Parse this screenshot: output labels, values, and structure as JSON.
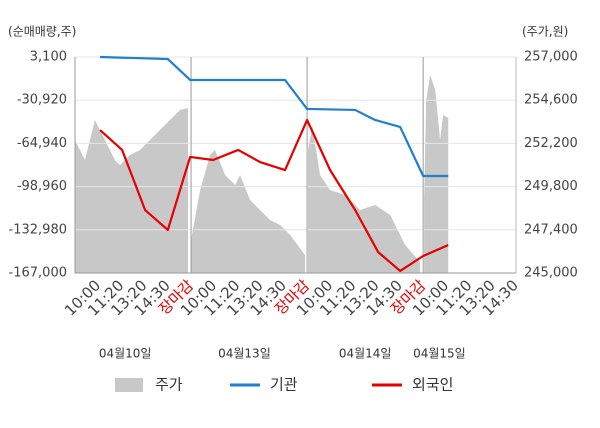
{
  "chart_data": {
    "type": "combo",
    "y_label": "(순매매량,주)",
    "y2_label": "(주가,원)",
    "xlim": [
      0,
      19
    ],
    "ylim": [
      -167000,
      3100
    ],
    "y2lim": [
      245000,
      257000
    ],
    "yticks": [
      {
        "value": 3100,
        "label": "3,100"
      },
      {
        "value": -30920,
        "label": "-30,920"
      },
      {
        "value": -64940,
        "label": "-64,940"
      },
      {
        "value": -98960,
        "label": "-98,960"
      },
      {
        "value": -132980,
        "label": "-132,980"
      },
      {
        "value": -167000,
        "label": "-167,000"
      }
    ],
    "y2ticks": [
      {
        "value": 257000,
        "label": "257,000"
      },
      {
        "value": 254600,
        "label": "254,600"
      },
      {
        "value": 252200,
        "label": "252,200"
      },
      {
        "value": 249800,
        "label": "249,800"
      },
      {
        "value": 247400,
        "label": "247,400"
      },
      {
        "value": 245000,
        "label": "245,000"
      }
    ],
    "xticks": [
      {
        "value": 1,
        "label": "10:00"
      },
      {
        "value": 2,
        "label": "11:20"
      },
      {
        "value": 3,
        "label": "13:20"
      },
      {
        "value": 4,
        "label": "14:30"
      },
      {
        "value": 5,
        "label": "장마감",
        "color": "#e60000"
      },
      {
        "value": 6,
        "label": "10:00"
      },
      {
        "value": 7,
        "label": "11:20"
      },
      {
        "value": 8,
        "label": "13:20"
      },
      {
        "value": 9,
        "label": "14:30"
      },
      {
        "value": 10,
        "label": "장마감",
        "color": "#e60000"
      },
      {
        "value": 11,
        "label": "10:00"
      },
      {
        "value": 12,
        "label": "11:20"
      },
      {
        "value": 13,
        "label": "13:20"
      },
      {
        "value": 14,
        "label": "14:30"
      },
      {
        "value": 15,
        "label": "장마감",
        "color": "#e60000"
      },
      {
        "value": 16,
        "label": "10:00"
      },
      {
        "value": 17,
        "label": "11:20"
      },
      {
        "value": 18,
        "label": "13:20"
      },
      {
        "value": 19,
        "label": "14:30"
      }
    ],
    "day_labels": [
      {
        "value": 2.16,
        "label": "04월10일"
      },
      {
        "value": 7.3,
        "label": "04월13일"
      },
      {
        "value": 12.5,
        "label": "04월14일"
      },
      {
        "value": 15.7,
        "label": "04월15일"
      }
    ],
    "xgrid": [
      5,
      10,
      15
    ],
    "grid": true,
    "legend": "bottom",
    "series": [
      {
        "name": "주가",
        "type": "area",
        "axis": "y2",
        "color": "#c8c8c8",
        "x": [
          0,
          0.43,
          0.86,
          1.29,
          1.72,
          1.94,
          2.37,
          2.8,
          3.23,
          3.66,
          4.09,
          4.53,
          4.87,
          null,
          5.0,
          5.39,
          5.82,
          6.03,
          6.47,
          6.9,
          7.11,
          7.54,
          7.97,
          8.41,
          8.84,
          9.27,
          9.91,
          null,
          10.04,
          10.22,
          10.56,
          10.99,
          11.64,
          12.28,
          12.93,
          13.58,
          14.22,
          14.87,
          null,
          15.04,
          15.13,
          15.3,
          15.52,
          15.73,
          15.86,
          16.08
        ],
        "values": [
          252390,
          251280,
          253500,
          252390,
          251280,
          251000,
          251560,
          251830,
          252390,
          252950,
          253500,
          254060,
          254170,
          null,
          246830,
          249610,
          251560,
          251830,
          250440,
          249890,
          250440,
          249060,
          248500,
          247940,
          247670,
          247110,
          246000,
          null,
          251830,
          253220,
          250440,
          249610,
          249330,
          248500,
          248780,
          248220,
          246560,
          245610,
          null,
          249060,
          254610,
          256000,
          255170,
          252390,
          253780,
          253610
        ]
      },
      {
        "name": "기관",
        "type": "line",
        "color": "#1f7fd0",
        "x": [
          1.08,
          4.0,
          4.96,
          9.05,
          10.0,
          12.07,
          12.93,
          14.01,
          15.0,
          16.08
        ],
        "values": [
          3100,
          1500,
          -15000,
          -15000,
          -37800,
          -38600,
          -46500,
          -52000,
          -90600,
          -90600
        ]
      },
      {
        "name": "외국인",
        "type": "line",
        "color": "#e60000",
        "x": [
          1.08,
          2.03,
          3.02,
          4.0,
          4.96,
          5.95,
          7.03,
          7.97,
          9.05,
          10.0,
          10.99,
          12.07,
          13.06,
          14.01,
          15.0,
          16.08
        ],
        "values": [
          -54400,
          -70100,
          -117400,
          -133100,
          -75600,
          -78000,
          -70100,
          -79600,
          -85900,
          -46500,
          -85900,
          -117400,
          -150500,
          -165400,
          -153600,
          -145000
        ]
      }
    ]
  }
}
